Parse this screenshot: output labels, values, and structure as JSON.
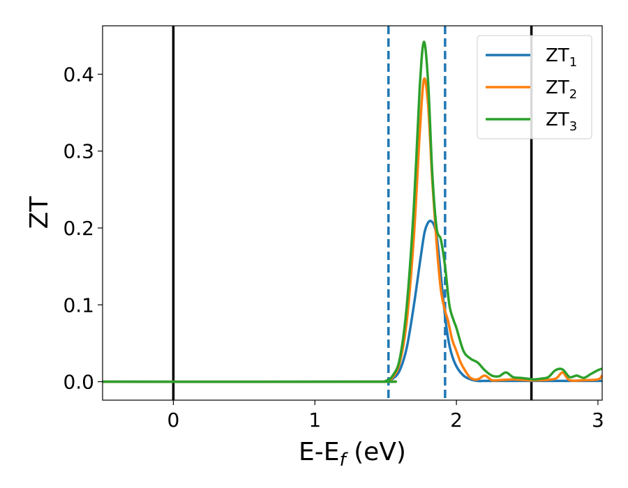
{
  "chart_data": {
    "type": "line",
    "title": "",
    "xlabel": "E-E",
    "xlabel_sub": "f",
    "xlabel_unit": " (eV)",
    "ylabel": "ZT",
    "xlim": [
      -0.5,
      3.03
    ],
    "ylim": [
      -0.024,
      0.463
    ],
    "x_ticks": [
      0,
      1,
      2,
      3
    ],
    "x_tick_labels": [
      "0",
      "1",
      "2",
      "3"
    ],
    "y_ticks": [
      0.0,
      0.1,
      0.2,
      0.3,
      0.4
    ],
    "y_tick_labels": [
      "0.0",
      "0.1",
      "0.2",
      "0.3",
      "0.4"
    ],
    "grid": false,
    "legend_position": "top-right",
    "vertical_lines": [
      {
        "x": 0.0,
        "style": "solid",
        "color": "#000000"
      },
      {
        "x": 2.53,
        "style": "solid",
        "color": "#000000"
      },
      {
        "x": 1.52,
        "style": "dashed",
        "color": "#1f77b4"
      },
      {
        "x": 1.92,
        "style": "dashed",
        "color": "#1f77b4"
      }
    ],
    "series": [
      {
        "name": "ZT",
        "name_sub": "1",
        "color": "#1f77b4",
        "x": [
          -0.5,
          1.4,
          1.5,
          1.55,
          1.6,
          1.65,
          1.7,
          1.75,
          1.78,
          1.82,
          1.86,
          1.9,
          1.93,
          1.96,
          2.0,
          2.05,
          2.1,
          2.15,
          2.2,
          2.3,
          2.5,
          2.8,
          3.03
        ],
        "y": [
          0.0,
          0.0,
          0.001,
          0.004,
          0.015,
          0.045,
          0.1,
          0.165,
          0.198,
          0.209,
          0.19,
          0.12,
          0.07,
          0.04,
          0.02,
          0.008,
          0.003,
          0.001,
          0.001,
          0.001,
          0.001,
          0.001,
          0.001
        ]
      },
      {
        "name": "ZT",
        "name_sub": "2",
        "color": "#ff7f0e",
        "x": [
          -0.5,
          1.4,
          1.5,
          1.55,
          1.6,
          1.65,
          1.7,
          1.74,
          1.77,
          1.8,
          1.83,
          1.86,
          1.89,
          1.92,
          1.94,
          1.97,
          2.0,
          2.03,
          2.06,
          2.1,
          2.15,
          2.2,
          2.25,
          2.3,
          2.4,
          2.5,
          2.6,
          2.7,
          2.75,
          2.8,
          2.9,
          3.0,
          3.03
        ],
        "y": [
          0.0,
          0.0,
          0.001,
          0.006,
          0.025,
          0.08,
          0.19,
          0.32,
          0.393,
          0.36,
          0.26,
          0.18,
          0.12,
          0.092,
          0.08,
          0.055,
          0.04,
          0.025,
          0.015,
          0.005,
          0.003,
          0.008,
          0.002,
          0.002,
          0.003,
          0.002,
          0.002,
          0.004,
          0.012,
          0.002,
          0.002,
          0.003,
          0.008
        ]
      },
      {
        "name": "ZT",
        "name_sub": "3",
        "color": "#2ca02c",
        "x": [
          -0.5,
          1.4,
          1.5,
          1.55,
          1.6,
          1.65,
          1.7,
          1.74,
          1.77,
          1.8,
          1.83,
          1.86,
          1.89,
          1.92,
          1.95,
          1.98,
          2.0,
          2.05,
          2.1,
          2.15,
          2.2,
          2.25,
          2.3,
          2.35,
          2.4,
          2.45,
          2.5,
          2.55,
          2.6,
          2.65,
          2.7,
          2.75,
          2.8,
          2.85,
          2.9,
          2.95,
          3.0,
          3.03
        ],
        "y": [
          0.0,
          0.0,
          0.001,
          0.008,
          0.03,
          0.1,
          0.23,
          0.38,
          0.442,
          0.39,
          0.27,
          0.2,
          0.185,
          0.15,
          0.1,
          0.08,
          0.07,
          0.04,
          0.03,
          0.025,
          0.015,
          0.008,
          0.007,
          0.012,
          0.006,
          0.005,
          0.004,
          0.003,
          0.004,
          0.006,
          0.015,
          0.016,
          0.006,
          0.008,
          0.005,
          0.01,
          0.015,
          0.017
        ]
      }
    ]
  }
}
